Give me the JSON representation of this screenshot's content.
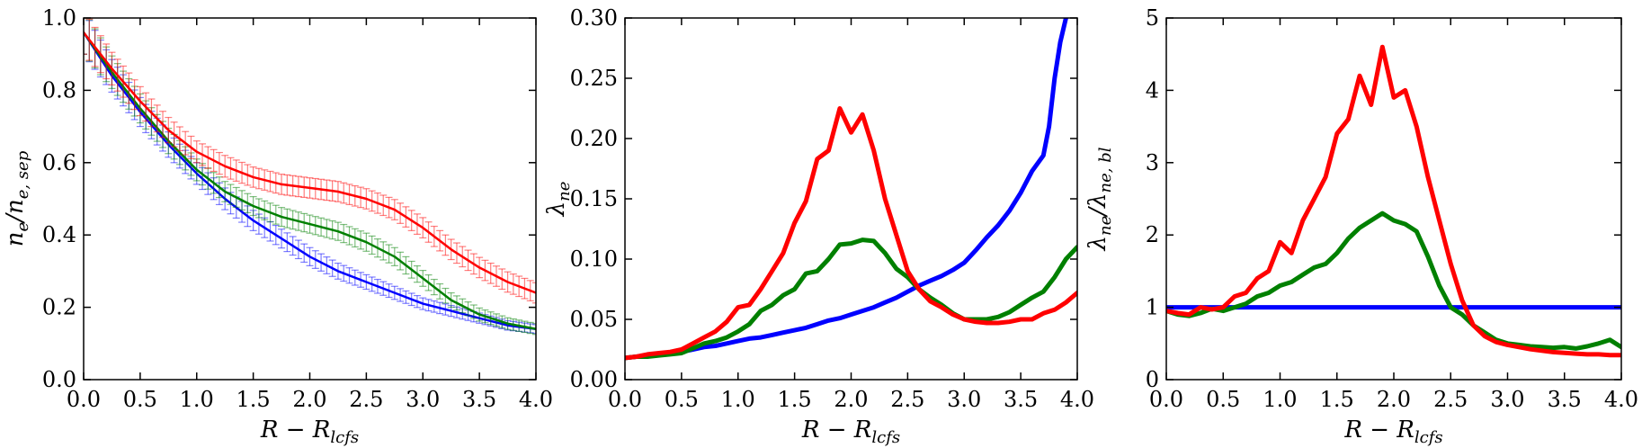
{
  "figure": {
    "title": ""
  },
  "chart_data": [
    {
      "id": "panel-ne",
      "type": "line",
      "title": "",
      "xlabel": "R - R_lcfs",
      "xlabel_parts": [
        "R − R",
        "lcfs"
      ],
      "ylabel": "n_e / n_e,sep",
      "ylabel_parts": [
        "n",
        "e",
        "/n",
        "e, sep"
      ],
      "xlim": [
        0.0,
        4.0
      ],
      "ylim": [
        0.0,
        1.0
      ],
      "xticks": [
        "0.0",
        "0.5",
        "1.0",
        "1.5",
        "2.0",
        "2.5",
        "3.0",
        "3.5",
        "4.0"
      ],
      "yticks": [
        "0.0",
        "0.2",
        "0.4",
        "0.6",
        "0.8",
        "1.0"
      ],
      "error_bars": true,
      "series": [
        {
          "name": "blue",
          "color": "#0000ff",
          "x": [
            0.0,
            0.25,
            0.5,
            0.75,
            1.0,
            1.25,
            1.5,
            1.75,
            2.0,
            2.25,
            2.5,
            2.75,
            3.0,
            3.25,
            3.5,
            3.75,
            4.0
          ],
          "y": [
            0.96,
            0.84,
            0.74,
            0.65,
            0.57,
            0.5,
            0.44,
            0.39,
            0.34,
            0.3,
            0.27,
            0.24,
            0.21,
            0.19,
            0.17,
            0.15,
            0.14
          ],
          "err": [
            0.06,
            0.045,
            0.04,
            0.035,
            0.03,
            0.03,
            0.028,
            0.026,
            0.025,
            0.022,
            0.02,
            0.018,
            0.016,
            0.015,
            0.014,
            0.013,
            0.012
          ]
        },
        {
          "name": "green",
          "color": "#008000",
          "x": [
            0.0,
            0.25,
            0.5,
            0.75,
            1.0,
            1.25,
            1.5,
            1.75,
            2.0,
            2.25,
            2.5,
            2.75,
            3.0,
            3.25,
            3.5,
            3.75,
            4.0
          ],
          "y": [
            0.96,
            0.85,
            0.75,
            0.66,
            0.58,
            0.52,
            0.48,
            0.45,
            0.43,
            0.41,
            0.38,
            0.34,
            0.28,
            0.22,
            0.18,
            0.155,
            0.14
          ],
          "err": [
            0.06,
            0.045,
            0.04,
            0.035,
            0.03,
            0.028,
            0.026,
            0.026,
            0.025,
            0.025,
            0.025,
            0.025,
            0.022,
            0.02,
            0.018,
            0.016,
            0.015
          ]
        },
        {
          "name": "red",
          "color": "#ff0000",
          "x": [
            0.0,
            0.25,
            0.5,
            0.75,
            1.0,
            1.25,
            1.5,
            1.75,
            2.0,
            2.25,
            2.5,
            2.75,
            3.0,
            3.25,
            3.5,
            3.75,
            4.0
          ],
          "y": [
            0.96,
            0.86,
            0.77,
            0.69,
            0.63,
            0.59,
            0.56,
            0.54,
            0.53,
            0.52,
            0.5,
            0.47,
            0.42,
            0.36,
            0.31,
            0.27,
            0.24
          ],
          "err": [
            0.06,
            0.045,
            0.04,
            0.035,
            0.03,
            0.03,
            0.028,
            0.028,
            0.028,
            0.028,
            0.028,
            0.028,
            0.028,
            0.028,
            0.028,
            0.028,
            0.028
          ]
        }
      ]
    },
    {
      "id": "panel-lambda",
      "type": "line",
      "title": "",
      "xlabel": "R - R_lcfs",
      "xlabel_parts": [
        "R − R",
        "lcfs"
      ],
      "ylabel": "λ_ne",
      "ylabel_parts": [
        "λ",
        "ne"
      ],
      "xlim": [
        0.0,
        4.0
      ],
      "ylim": [
        0.0,
        0.3
      ],
      "xticks": [
        "0.0",
        "0.5",
        "1.0",
        "1.5",
        "2.0",
        "2.5",
        "3.0",
        "3.5",
        "4.0"
      ],
      "yticks": [
        "0.00",
        "0.05",
        "0.10",
        "0.15",
        "0.20",
        "0.25",
        "0.30"
      ],
      "series": [
        {
          "name": "blue",
          "color": "#0000ff",
          "x": [
            0.0,
            0.1,
            0.2,
            0.3,
            0.4,
            0.5,
            0.6,
            0.7,
            0.8,
            0.9,
            1.0,
            1.1,
            1.2,
            1.3,
            1.4,
            1.5,
            1.6,
            1.7,
            1.8,
            1.9,
            2.0,
            2.1,
            2.2,
            2.3,
            2.4,
            2.5,
            2.6,
            2.7,
            2.8,
            2.9,
            3.0,
            3.1,
            3.2,
            3.3,
            3.4,
            3.5,
            3.6,
            3.7,
            3.75,
            3.8,
            3.85,
            3.9
          ],
          "y": [
            0.018,
            0.019,
            0.02,
            0.021,
            0.022,
            0.023,
            0.025,
            0.027,
            0.028,
            0.03,
            0.032,
            0.034,
            0.035,
            0.037,
            0.039,
            0.041,
            0.043,
            0.046,
            0.049,
            0.051,
            0.054,
            0.057,
            0.06,
            0.064,
            0.068,
            0.073,
            0.078,
            0.082,
            0.086,
            0.091,
            0.097,
            0.107,
            0.118,
            0.128,
            0.14,
            0.155,
            0.173,
            0.186,
            0.21,
            0.25,
            0.28,
            0.3
          ]
        },
        {
          "name": "green",
          "color": "#008000",
          "x": [
            0.0,
            0.1,
            0.2,
            0.3,
            0.4,
            0.5,
            0.6,
            0.7,
            0.8,
            0.9,
            1.0,
            1.1,
            1.2,
            1.3,
            1.4,
            1.5,
            1.6,
            1.7,
            1.8,
            1.9,
            2.0,
            2.1,
            2.2,
            2.3,
            2.4,
            2.5,
            2.6,
            2.7,
            2.8,
            2.9,
            3.0,
            3.1,
            3.2,
            3.3,
            3.4,
            3.5,
            3.6,
            3.7,
            3.8,
            3.9,
            4.0
          ],
          "y": [
            0.018,
            0.019,
            0.019,
            0.02,
            0.021,
            0.022,
            0.026,
            0.03,
            0.032,
            0.035,
            0.04,
            0.046,
            0.057,
            0.062,
            0.07,
            0.075,
            0.088,
            0.09,
            0.1,
            0.112,
            0.113,
            0.116,
            0.115,
            0.105,
            0.092,
            0.085,
            0.075,
            0.068,
            0.062,
            0.055,
            0.05,
            0.05,
            0.05,
            0.052,
            0.056,
            0.062,
            0.068,
            0.073,
            0.085,
            0.1,
            0.11
          ]
        },
        {
          "name": "red",
          "color": "#ff0000",
          "x": [
            0.0,
            0.1,
            0.2,
            0.3,
            0.4,
            0.5,
            0.6,
            0.7,
            0.8,
            0.9,
            1.0,
            1.1,
            1.2,
            1.3,
            1.4,
            1.5,
            1.6,
            1.7,
            1.8,
            1.9,
            2.0,
            2.1,
            2.2,
            2.3,
            2.4,
            2.5,
            2.6,
            2.7,
            2.8,
            2.9,
            3.0,
            3.1,
            3.2,
            3.3,
            3.4,
            3.5,
            3.6,
            3.7,
            3.8,
            3.9,
            4.0
          ],
          "y": [
            0.018,
            0.019,
            0.021,
            0.022,
            0.023,
            0.025,
            0.03,
            0.035,
            0.04,
            0.048,
            0.06,
            0.062,
            0.075,
            0.09,
            0.105,
            0.13,
            0.148,
            0.183,
            0.19,
            0.225,
            0.205,
            0.22,
            0.19,
            0.15,
            0.12,
            0.09,
            0.075,
            0.065,
            0.06,
            0.054,
            0.05,
            0.048,
            0.047,
            0.047,
            0.048,
            0.05,
            0.05,
            0.055,
            0.058,
            0.064,
            0.072
          ]
        }
      ]
    },
    {
      "id": "panel-ratio",
      "type": "line",
      "title": "",
      "xlabel": "R - R_lcfs",
      "xlabel_parts": [
        "R − R",
        "lcfs"
      ],
      "ylabel": "λ_ne / λ_ne,bl",
      "ylabel_parts": [
        "λ",
        "ne",
        "/λ",
        "ne, bl"
      ],
      "xlim": [
        0.0,
        4.0
      ],
      "ylim": [
        0.0,
        5.0
      ],
      "xticks": [
        "0.0",
        "0.5",
        "1.0",
        "1.5",
        "2.0",
        "2.5",
        "3.0",
        "3.5",
        "4.0"
      ],
      "yticks": [
        "0",
        "1",
        "2",
        "3",
        "4",
        "5"
      ],
      "series": [
        {
          "name": "blue",
          "color": "#0000ff",
          "x": [
            0.0,
            4.0
          ],
          "y": [
            1.0,
            1.0
          ]
        },
        {
          "name": "green",
          "color": "#008000",
          "x": [
            0.0,
            0.1,
            0.2,
            0.3,
            0.4,
            0.5,
            0.6,
            0.7,
            0.8,
            0.9,
            1.0,
            1.1,
            1.2,
            1.3,
            1.4,
            1.5,
            1.6,
            1.7,
            1.8,
            1.9,
            2.0,
            2.1,
            2.2,
            2.3,
            2.4,
            2.5,
            2.6,
            2.7,
            2.8,
            2.9,
            3.0,
            3.1,
            3.2,
            3.3,
            3.4,
            3.5,
            3.6,
            3.7,
            3.8,
            3.9,
            4.0
          ],
          "y": [
            0.95,
            0.9,
            0.88,
            0.92,
            0.98,
            0.95,
            1.0,
            1.05,
            1.15,
            1.2,
            1.3,
            1.35,
            1.45,
            1.55,
            1.6,
            1.75,
            1.95,
            2.1,
            2.2,
            2.3,
            2.2,
            2.15,
            2.05,
            1.7,
            1.3,
            1.0,
            0.9,
            0.75,
            0.65,
            0.55,
            0.5,
            0.48,
            0.46,
            0.45,
            0.44,
            0.45,
            0.43,
            0.46,
            0.5,
            0.55,
            0.45
          ]
        },
        {
          "name": "red",
          "color": "#ff0000",
          "x": [
            0.0,
            0.1,
            0.2,
            0.3,
            0.4,
            0.5,
            0.6,
            0.7,
            0.8,
            0.9,
            1.0,
            1.1,
            1.2,
            1.3,
            1.4,
            1.5,
            1.6,
            1.7,
            1.8,
            1.9,
            2.0,
            2.1,
            2.2,
            2.3,
            2.4,
            2.5,
            2.6,
            2.7,
            2.8,
            2.9,
            3.0,
            3.1,
            3.2,
            3.3,
            3.4,
            3.5,
            3.6,
            3.7,
            3.8,
            3.9,
            4.0
          ],
          "y": [
            0.95,
            0.92,
            0.9,
            1.0,
            0.97,
            1.0,
            1.15,
            1.2,
            1.4,
            1.5,
            1.9,
            1.75,
            2.2,
            2.5,
            2.8,
            3.4,
            3.6,
            4.2,
            3.8,
            4.6,
            3.9,
            4.0,
            3.5,
            2.8,
            2.2,
            1.6,
            1.1,
            0.75,
            0.6,
            0.52,
            0.48,
            0.45,
            0.42,
            0.4,
            0.38,
            0.37,
            0.36,
            0.35,
            0.35,
            0.34,
            0.34
          ]
        }
      ]
    }
  ]
}
